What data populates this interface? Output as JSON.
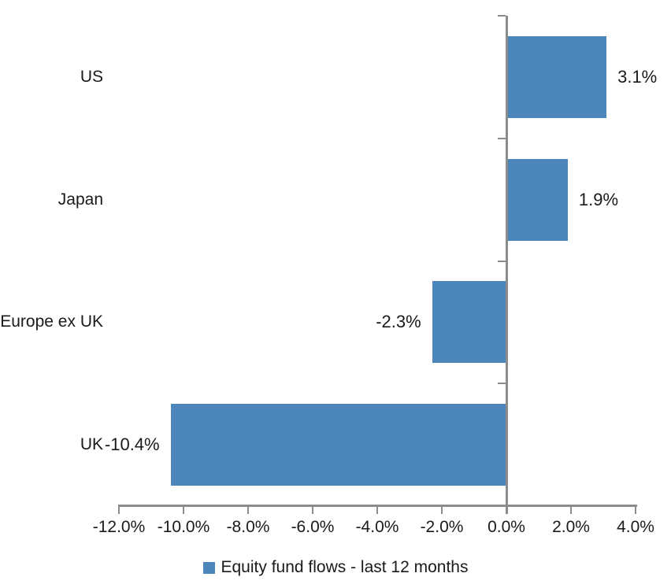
{
  "chart_data": {
    "type": "bar",
    "orientation": "horizontal",
    "title": "",
    "categories": [
      "US",
      "Japan",
      "Europe ex UK",
      "UK"
    ],
    "series": [
      {
        "name": "Equity fund flows - last 12 months",
        "values": [
          3.1,
          1.9,
          -2.3,
          -10.4
        ]
      }
    ],
    "value_labels": [
      "3.1%",
      "1.9%",
      "-2.3%",
      "-10.4%"
    ],
    "xlim": [
      -12,
      4
    ],
    "x_ticks": [
      -12,
      -10,
      -8,
      -6,
      -4,
      -2,
      0,
      2,
      4
    ],
    "x_tick_labels": [
      "-12.0%",
      "-10.0%",
      "-8.0%",
      "-6.0%",
      "-4.0%",
      "-2.0%",
      "0.0%",
      "2.0%",
      "4.0%"
    ],
    "grid": "off",
    "legend": {
      "position": "bottom",
      "label": "Equity fund flows - last 12 months"
    },
    "colors": {
      "bar": "#4D86BB",
      "axis": "#8C8C8C",
      "text": "#1a1a1a",
      "background": "#FFFFFF"
    }
  }
}
